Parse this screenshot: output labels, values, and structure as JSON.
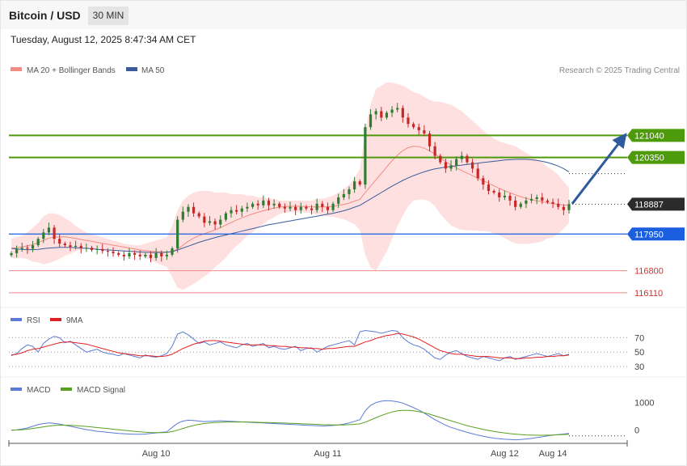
{
  "header": {
    "title": "Bitcoin / USD",
    "interval": "30 MIN",
    "timestamp": "Tuesday, August 12, 2025 8:47:34 AM CET",
    "credit": "Research © 2025 Trading Central"
  },
  "colors": {
    "candle_up": "#2e7d32",
    "candle_down": "#c62828",
    "ma20": "#f28b82",
    "bollinger_fill": "#ffd6d6",
    "ma50": "#3a5c9a",
    "resistance": "#4d9a0a",
    "support": "#1a5fe0",
    "target_line": "#ef8a8a",
    "arrow": "#2f5a9e",
    "rsi": "#5b7bd5",
    "rsi_ma": "#e02020",
    "macd": "#5b7bd5",
    "macd_signal": "#5aa020"
  },
  "chart_data": [
    {
      "type": "candlestick",
      "legend": [
        {
          "label": "MA 20 + Bollinger Bands",
          "color": "#f28b82"
        },
        {
          "label": "MA 50",
          "color": "#3a5c9a"
        }
      ],
      "x_tick_labels": [
        "Aug 10",
        "Aug 11",
        "Aug 12",
        "Aug 14"
      ],
      "ylim": [
        115700,
        122800
      ],
      "last_price": 118887,
      "levels": [
        {
          "label": "121040",
          "value": 121040,
          "kind": "resistance"
        },
        {
          "label": "120350",
          "value": 120350,
          "kind": "resistance"
        },
        {
          "label": "117950",
          "value": 117950,
          "kind": "support"
        },
        {
          "label": "116800",
          "value": 116800,
          "kind": "target"
        },
        {
          "label": "116110",
          "value": 116110,
          "kind": "target"
        }
      ],
      "forecast_arrow": {
        "from": 118900,
        "to": 121040,
        "direction": "up"
      },
      "price_path": [
        117350,
        117480,
        117520,
        117490,
        117600,
        117800,
        118000,
        118150,
        117800,
        117650,
        117600,
        117550,
        117580,
        117500,
        117520,
        117450,
        117480,
        117420,
        117400,
        117350,
        117300,
        117250,
        117350,
        117300,
        117250,
        117300,
        117200,
        117350,
        117250,
        117300,
        117500,
        118400,
        118650,
        118800,
        118600,
        118500,
        118300,
        118350,
        118250,
        118400,
        118600,
        118700,
        118650,
        118750,
        118800,
        118900,
        118850,
        119000,
        118850,
        118900,
        118800,
        118750,
        118800,
        118700,
        118800,
        118750,
        118700,
        118900,
        118800,
        118700,
        118900,
        119100,
        119200,
        119350,
        119600,
        119500,
        121300,
        121700,
        121800,
        121600,
        121750,
        121850,
        121900,
        121600,
        121400,
        121300,
        121200,
        121100,
        120700,
        120400,
        120200,
        120000,
        120100,
        120300,
        120400,
        120200,
        120000,
        119700,
        119500,
        119300,
        119250,
        119100,
        119150,
        119000,
        118800,
        118900,
        119000,
        119050,
        119100,
        119000,
        118950,
        118900,
        118800,
        118700,
        118887
      ],
      "ma20": [
        117500,
        117520,
        117550,
        117580,
        117620,
        117680,
        117750,
        117820,
        117850,
        117860,
        117860,
        117840,
        117810,
        117780,
        117750,
        117720,
        117690,
        117660,
        117630,
        117600,
        117570,
        117540,
        117510,
        117480,
        117450,
        117430,
        117410,
        117400,
        117390,
        117380,
        117400,
        117480,
        117600,
        117720,
        117820,
        117900,
        117960,
        118020,
        118080,
        118150,
        118230,
        118310,
        118390,
        118460,
        118520,
        118580,
        118630,
        118680,
        118720,
        118760,
        118790,
        118810,
        118820,
        118820,
        118820,
        118810,
        118800,
        118800,
        118800,
        118800,
        118820,
        118850,
        118880,
        118920,
        118980,
        119040,
        119250,
        119450,
        119650,
        119850,
        120050,
        120250,
        120420,
        120560,
        120660,
        120700,
        120690,
        120640,
        120560,
        120460,
        120340,
        120220,
        120110,
        120020,
        119940,
        119860,
        119780,
        119700,
        119620,
        119540,
        119460,
        119380,
        119310,
        119240,
        119180,
        119120,
        119070,
        119030,
        118990,
        118960,
        118930,
        118900,
        118880,
        118860,
        118850
      ],
      "bb_upper": [
        117800,
        117850,
        117900,
        118000,
        118150,
        118300,
        118500,
        118600,
        118600,
        118550,
        118450,
        118350,
        118200,
        118100,
        118000,
        117950,
        117900,
        117850,
        117800,
        117750,
        117700,
        117650,
        117620,
        117600,
        117600,
        117650,
        117700,
        117750,
        117800,
        117850,
        118200,
        118700,
        119000,
        119150,
        119250,
        119300,
        119300,
        119300,
        119250,
        119250,
        119250,
        119200,
        119200,
        119200,
        119150,
        119150,
        119100,
        119100,
        119050,
        119050,
        119000,
        119000,
        119000,
        119000,
        119000,
        119000,
        119000,
        119050,
        119050,
        119100,
        119150,
        119250,
        119350,
        119500,
        119700,
        120000,
        121200,
        122000,
        122500,
        122600,
        122700,
        122700,
        122650,
        122600,
        122500,
        122400,
        122350,
        122250,
        122150,
        122100,
        122100,
        122050,
        122000,
        121900,
        121800,
        121650,
        121500,
        121350,
        121200,
        121050,
        120950,
        120850,
        120800,
        120750,
        120700,
        120600,
        120500,
        120400,
        120300,
        120200,
        120050,
        119950,
        119800,
        119600,
        119400
      ],
      "bb_lower": [
        117200,
        117190,
        117200,
        117160,
        117090,
        117060,
        117000,
        117040,
        117100,
        117170,
        117270,
        117330,
        117420,
        117460,
        117500,
        117490,
        117480,
        117470,
        117460,
        117450,
        117440,
        117430,
        117400,
        117360,
        117300,
        117210,
        117120,
        117050,
        116980,
        116910,
        116600,
        116260,
        116200,
        116290,
        116390,
        116500,
        116620,
        116740,
        116910,
        117050,
        117210,
        117420,
        117580,
        117720,
        117890,
        118010,
        118160,
        118260,
        118390,
        118470,
        118580,
        118620,
        118640,
        118640,
        118640,
        118620,
        118600,
        118550,
        118550,
        118500,
        118490,
        118450,
        118410,
        118340,
        118260,
        118080,
        117300,
        116900,
        116800,
        117100,
        117400,
        117800,
        118190,
        118520,
        118820,
        119000,
        119030,
        119030,
        118970,
        118820,
        118580,
        118390,
        118220,
        118140,
        118080,
        118070,
        118060,
        118050,
        118040,
        118030,
        117970,
        117910,
        117820,
        117730,
        117660,
        117640,
        117640,
        117660,
        117680,
        117720,
        117810,
        117850,
        117960,
        118120,
        118300
      ],
      "ma50": [
        117500,
        117480,
        117470,
        117460,
        117460,
        117470,
        117490,
        117510,
        117520,
        117530,
        117530,
        117530,
        117520,
        117510,
        117500,
        117490,
        117470,
        117460,
        117450,
        117440,
        117430,
        117420,
        117410,
        117400,
        117390,
        117380,
        117370,
        117370,
        117370,
        117380,
        117400,
        117450,
        117510,
        117570,
        117630,
        117690,
        117740,
        117790,
        117840,
        117880,
        117920,
        117960,
        118000,
        118040,
        118080,
        118120,
        118160,
        118200,
        118240,
        118270,
        118300,
        118330,
        118360,
        118390,
        118420,
        118450,
        118480,
        118510,
        118540,
        118570,
        118600,
        118640,
        118680,
        118730,
        118790,
        118850,
        118950,
        119050,
        119150,
        119250,
        119350,
        119450,
        119540,
        119630,
        119710,
        119780,
        119840,
        119900,
        119950,
        119990,
        120020,
        120050,
        120070,
        120090,
        120110,
        120130,
        120150,
        120170,
        120190,
        120210,
        120230,
        120250,
        120270,
        120280,
        120290,
        120290,
        120290,
        120280,
        120260,
        120230,
        120190,
        120140,
        120080,
        120000,
        119900
      ]
    },
    {
      "type": "line",
      "name": "RSI",
      "legend": [
        {
          "label": "RSI",
          "color": "#5b7bd5"
        },
        {
          "label": "9MA",
          "color": "#e02020"
        }
      ],
      "y_tick_labels": [
        "70",
        "50",
        "30"
      ],
      "ylim": [
        20,
        85
      ],
      "levels": [
        70,
        50,
        30
      ],
      "rsi": [
        45,
        48,
        55,
        60,
        58,
        50,
        62,
        68,
        72,
        70,
        63,
        65,
        60,
        55,
        50,
        52,
        54,
        50,
        48,
        47,
        45,
        48,
        46,
        44,
        42,
        46,
        44,
        43,
        45,
        48,
        58,
        75,
        78,
        74,
        68,
        62,
        64,
        60,
        62,
        64,
        60,
        58,
        56,
        60,
        62,
        58,
        60,
        62,
        56,
        58,
        55,
        54,
        56,
        58,
        52,
        55,
        56,
        50,
        54,
        58,
        60,
        62,
        64,
        66,
        60,
        78,
        80,
        79,
        78,
        76,
        78,
        80,
        79,
        70,
        64,
        60,
        58,
        54,
        48,
        42,
        40,
        46,
        50,
        52,
        48,
        44,
        42,
        40,
        44,
        42,
        40,
        38,
        42,
        44,
        40,
        42,
        44,
        46,
        48,
        46,
        44,
        46,
        48,
        45,
        47
      ],
      "rsi_ma": [
        46,
        47,
        49,
        52,
        54,
        55,
        57,
        59,
        61,
        63,
        64,
        64,
        63,
        62,
        61,
        59,
        57,
        55,
        53,
        51,
        49,
        48,
        47,
        46,
        45,
        45,
        45,
        44,
        44,
        45,
        47,
        51,
        55,
        58,
        61,
        63,
        65,
        66,
        66,
        65,
        64,
        63,
        62,
        61,
        60,
        60,
        60,
        60,
        59,
        59,
        58,
        58,
        57,
        57,
        56,
        56,
        55,
        55,
        54,
        55,
        55,
        56,
        57,
        58,
        58,
        61,
        64,
        66,
        69,
        71,
        73,
        74,
        76,
        75,
        73,
        71,
        68,
        64,
        60,
        56,
        52,
        50,
        48,
        47,
        47,
        46,
        45,
        44,
        44,
        44,
        43,
        42,
        42,
        42,
        41,
        41,
        42,
        42,
        43,
        43,
        44,
        44,
        45,
        45,
        46
      ]
    },
    {
      "type": "line",
      "name": "MACD",
      "legend": [
        {
          "label": "MACD",
          "color": "#5b7bd5"
        },
        {
          "label": "MACD Signal",
          "color": "#5aa020"
        }
      ],
      "y_tick_labels": [
        "1000",
        "0"
      ],
      "ylim": [
        -420,
        1400
      ],
      "zero_line": 0,
      "macd": [
        0,
        10,
        40,
        80,
        140,
        200,
        240,
        260,
        250,
        220,
        180,
        140,
        100,
        60,
        20,
        -10,
        -40,
        -60,
        -80,
        -100,
        -120,
        -130,
        -140,
        -150,
        -150,
        -140,
        -120,
        -100,
        -80,
        -60,
        100,
        250,
        330,
        360,
        350,
        330,
        310,
        320,
        330,
        340,
        330,
        320,
        310,
        300,
        290,
        280,
        270,
        260,
        250,
        240,
        230,
        220,
        210,
        200,
        190,
        180,
        170,
        160,
        150,
        160,
        170,
        190,
        220,
        260,
        320,
        380,
        700,
        900,
        1000,
        1050,
        1070,
        1060,
        1030,
        980,
        900,
        820,
        730,
        620,
        500,
        380,
        280,
        180,
        100,
        40,
        -20,
        -80,
        -130,
        -180,
        -220,
        -260,
        -290,
        -310,
        -330,
        -340,
        -350,
        -340,
        -320,
        -300,
        -270,
        -240,
        -210,
        -180,
        -160,
        -140,
        -120
      ],
      "macd_signal": [
        0,
        5,
        15,
        35,
        60,
        90,
        120,
        150,
        170,
        180,
        180,
        175,
        165,
        150,
        135,
        115,
        95,
        75,
        55,
        35,
        15,
        -5,
        -25,
        -45,
        -60,
        -75,
        -85,
        -90,
        -90,
        -85,
        -50,
        0,
        60,
        120,
        170,
        210,
        240,
        260,
        275,
        285,
        290,
        295,
        295,
        295,
        295,
        290,
        285,
        280,
        275,
        270,
        265,
        258,
        250,
        242,
        234,
        226,
        218,
        210,
        200,
        195,
        192,
        190,
        192,
        198,
        210,
        228,
        290,
        370,
        450,
        530,
        600,
        660,
        700,
        720,
        720,
        700,
        670,
        630,
        580,
        520,
        460,
        400,
        340,
        280,
        220,
        165,
        115,
        70,
        30,
        -10,
        -45,
        -75,
        -100,
        -125,
        -145,
        -160,
        -172,
        -180,
        -184,
        -185,
        -182,
        -176,
        -168,
        -158,
        -148
      ]
    }
  ]
}
